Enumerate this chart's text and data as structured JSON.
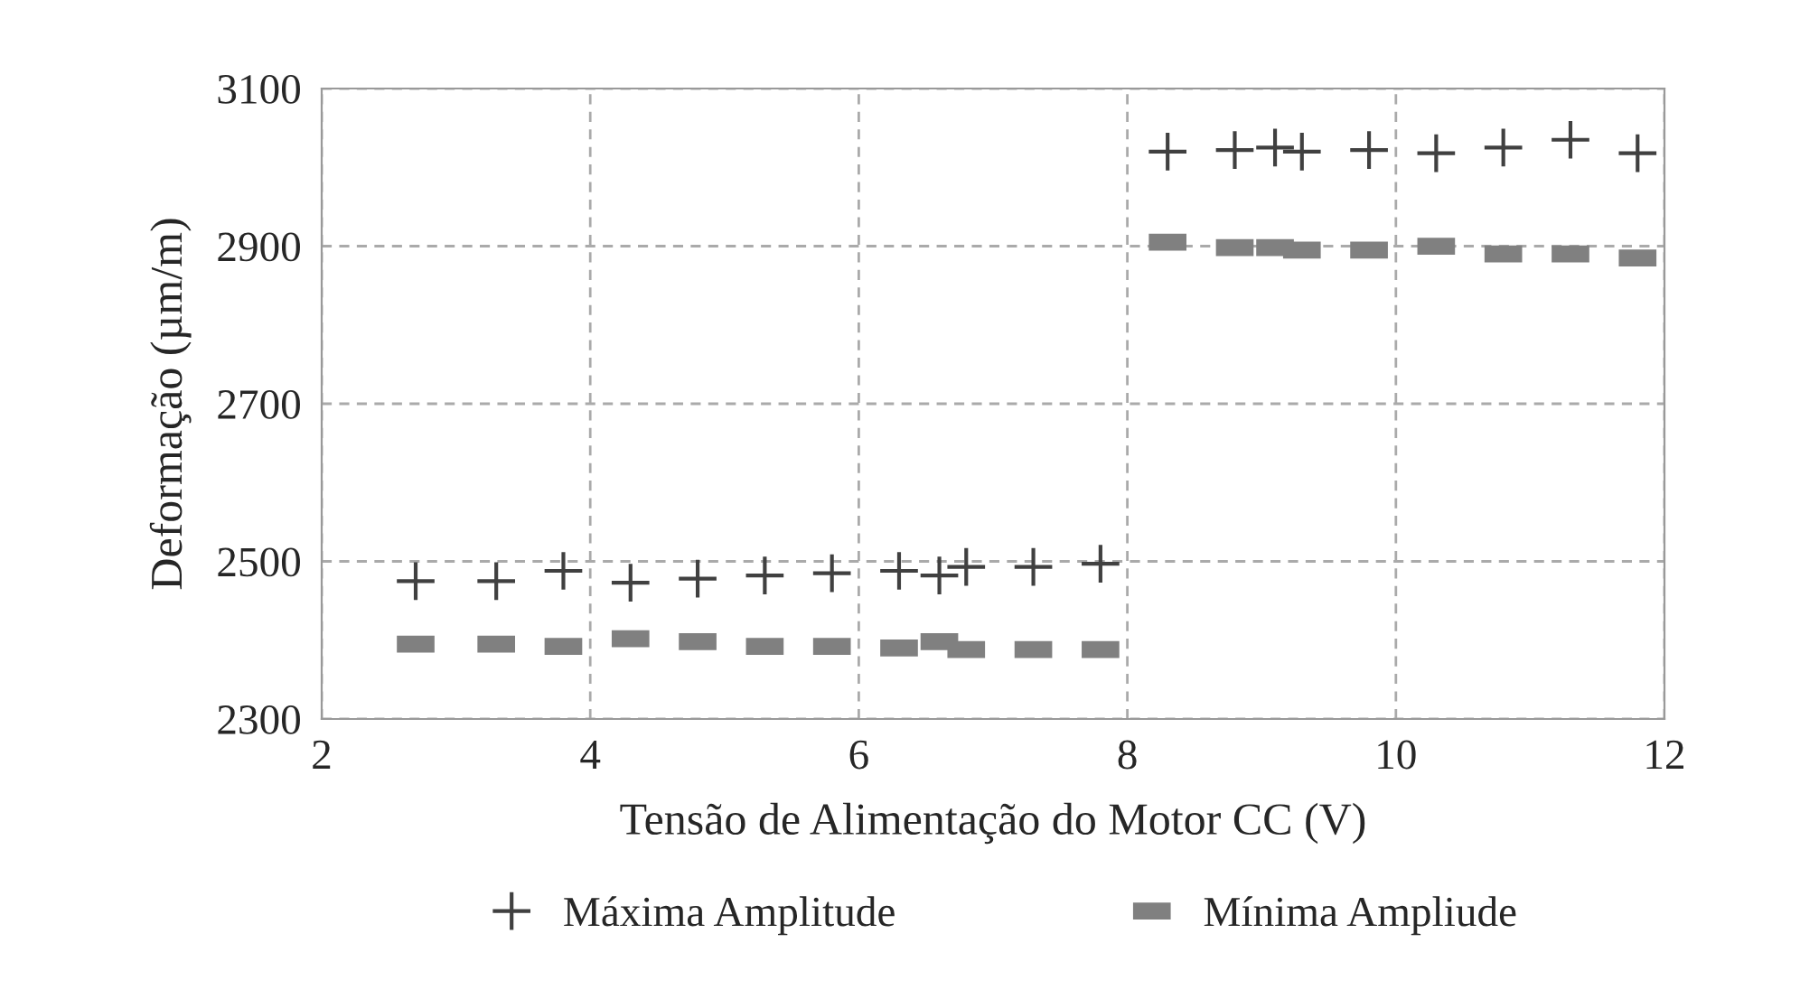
{
  "chart_data": {
    "type": "scatter",
    "xlabel": "Tensão de Alimentação do Motor CC (V)",
    "ylabel": "Deformação (µm/m)",
    "xlim": [
      2,
      12
    ],
    "xticks": [
      2,
      4,
      6,
      8,
      10,
      12
    ],
    "ylim": [
      2300,
      3100
    ],
    "yticks": [
      2300,
      2500,
      2700,
      2900,
      3100
    ],
    "grid": true,
    "legend": "bottom",
    "series": [
      {
        "name": "Máxima Amplitude",
        "color": "#404040",
        "marker": "cross",
        "x": [
          2.7,
          3.3,
          3.8,
          4.3,
          4.8,
          5.3,
          5.8,
          6.3,
          6.6,
          6.8,
          7.3,
          7.8,
          8.3,
          8.8,
          9.1,
          9.3,
          9.8,
          10.3,
          10.8,
          11.3,
          11.8
        ],
        "values": [
          2475,
          2475,
          2488,
          2473,
          2478,
          2482,
          2485,
          2488,
          2482,
          2493,
          2493,
          2497,
          3020,
          3022,
          3025,
          3020,
          3022,
          3018,
          3025,
          3035,
          3018
        ]
      },
      {
        "name": "Mínima Ampliude",
        "color": "#808080",
        "marker": "square",
        "x": [
          2.7,
          3.3,
          3.8,
          4.3,
          4.8,
          5.3,
          5.8,
          6.3,
          6.6,
          6.8,
          7.3,
          7.8,
          8.3,
          8.8,
          9.1,
          9.3,
          9.8,
          10.3,
          10.8,
          11.3,
          11.8
        ],
        "values": [
          2395,
          2395,
          2392,
          2402,
          2398,
          2392,
          2392,
          2390,
          2398,
          2388,
          2388,
          2388,
          2905,
          2898,
          2898,
          2895,
          2895,
          2900,
          2890,
          2890,
          2885
        ]
      }
    ]
  }
}
